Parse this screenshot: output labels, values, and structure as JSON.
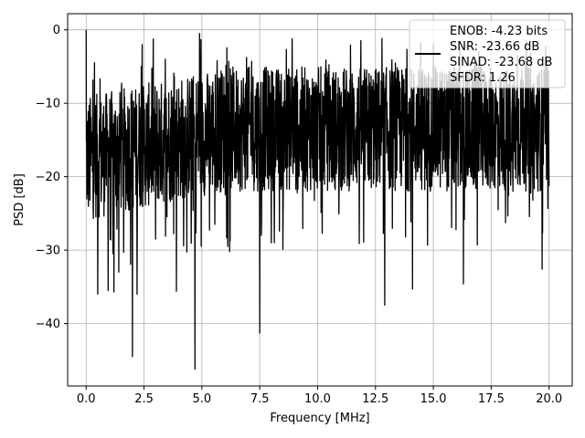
{
  "chart_data": {
    "type": "line",
    "title": "",
    "xlabel": "Frequency [MHz]",
    "ylabel": "PSD [dB]",
    "xlim": [
      -0.8,
      21.0
    ],
    "ylim": [
      -48.5,
      2.2
    ],
    "xticks": [
      0.0,
      2.5,
      5.0,
      7.5,
      10.0,
      12.5,
      15.0,
      17.5,
      20.0
    ],
    "xtick_labels": [
      "0.0",
      "2.5",
      "5.0",
      "7.5",
      "10.0",
      "12.5",
      "15.0",
      "17.5",
      "20.0"
    ],
    "yticks": [
      0,
      -10,
      -20,
      -30,
      -40
    ],
    "ytick_labels": [
      "0",
      "−10",
      "−20",
      "−30",
      "−40"
    ],
    "grid": true,
    "legend": {
      "placement": "upper right",
      "entries": [
        "ENOB: -4.23 bits",
        "SNR: -23.66 dB",
        "SINAD: -23.68 dB",
        "SFDR: 1.26"
      ]
    },
    "series": [
      {
        "color": "#000000",
        "x_start": 0.0,
        "x_end": 20.0,
        "band_upper_db": -5,
        "band_lower_db": -22,
        "values_db_notable": [
          {
            "x": 0.0,
            "y": 0.0
          },
          {
            "x": 0.5,
            "y": -36.0
          },
          {
            "x": 0.95,
            "y": -35.5
          },
          {
            "x": 1.2,
            "y": -35.7
          },
          {
            "x": 2.0,
            "y": -44.5
          },
          {
            "x": 2.2,
            "y": -36.0
          },
          {
            "x": 3.0,
            "y": -28.5
          },
          {
            "x": 3.9,
            "y": -35.6
          },
          {
            "x": 4.7,
            "y": -46.2
          },
          {
            "x": 4.9,
            "y": -0.5
          },
          {
            "x": 6.2,
            "y": -30.2
          },
          {
            "x": 7.5,
            "y": -41.3
          },
          {
            "x": 8.0,
            "y": -29.0
          },
          {
            "x": 8.9,
            "y": -1.2
          },
          {
            "x": 10.2,
            "y": -27.7
          },
          {
            "x": 11.8,
            "y": -29.1
          },
          {
            "x": 12.9,
            "y": -37.5
          },
          {
            "x": 13.8,
            "y": -28.2
          },
          {
            "x": 14.1,
            "y": -35.3
          },
          {
            "x": 16.3,
            "y": -34.6
          },
          {
            "x": 16.9,
            "y": -29.3
          },
          {
            "x": 19.7,
            "y": -32.6
          }
        ]
      }
    ]
  }
}
